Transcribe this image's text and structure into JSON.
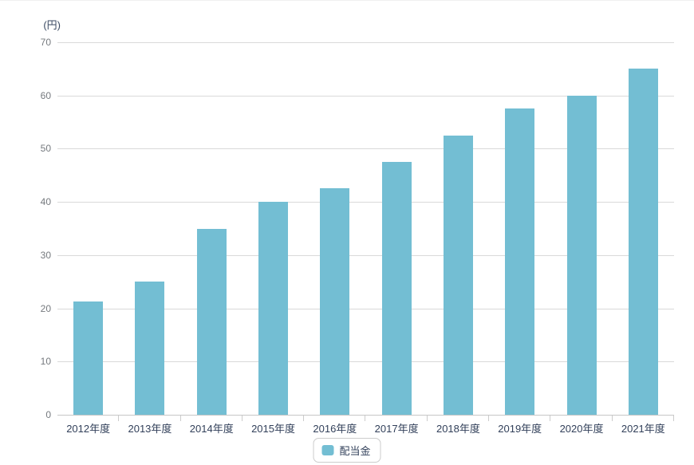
{
  "chart_data": {
    "type": "bar",
    "title": "",
    "y_axis_title": "(円)",
    "categories": [
      "2012年度",
      "2013年度",
      "2014年度",
      "2015年度",
      "2016年度",
      "2017年度",
      "2018年度",
      "2019年度",
      "2020年度",
      "2021年度"
    ],
    "series": [
      {
        "name": "配当金",
        "values": [
          21.25,
          25,
          35,
          40,
          42.5,
          47.5,
          52.5,
          57.5,
          60,
          65
        ]
      }
    ],
    "ylim": [
      0,
      70
    ],
    "y_ticks": [
      0,
      10,
      20,
      30,
      40,
      50,
      60,
      70
    ],
    "grid": true,
    "legend_position": "bottom",
    "colors": {
      "bar": "#73bed3",
      "gridline": "#d9d9d9",
      "axis_line": "#c6c6c6",
      "tick_mark": "#cccccc",
      "y_label_text": "#75797e",
      "x_label_text": "#32405a",
      "unit_label_text": "#3b4a63",
      "legend_border": "#cccccc"
    }
  },
  "legend": {
    "label": "配当金"
  }
}
